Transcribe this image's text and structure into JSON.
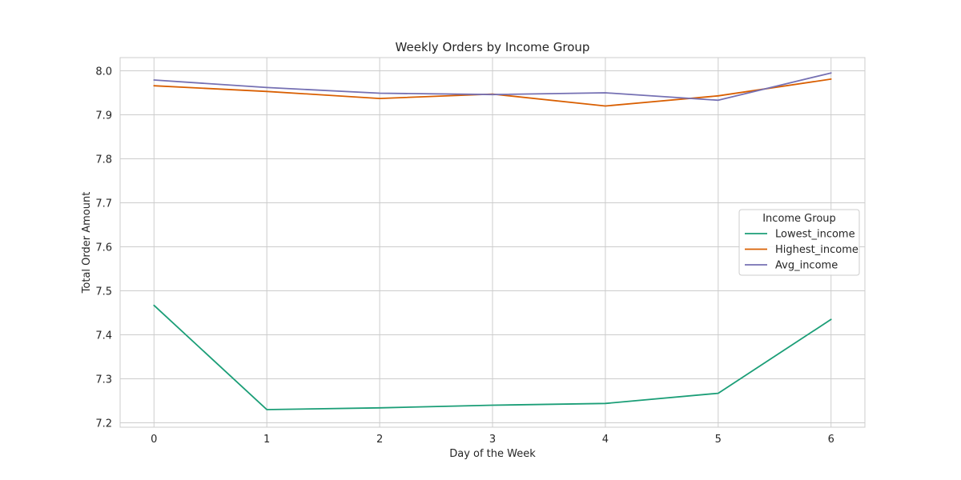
{
  "chart_data": {
    "type": "line",
    "title": "Weekly Orders by Income Group",
    "xlabel": "Day of the Week",
    "ylabel": "Total Order Amount",
    "x": [
      0,
      1,
      2,
      3,
      4,
      5,
      6
    ],
    "xlim": [
      -0.3,
      6.3
    ],
    "ylim": [
      7.19,
      8.03
    ],
    "yticks": [
      7.2,
      7.3,
      7.4,
      7.5,
      7.6,
      7.7,
      7.8,
      7.9,
      8.0
    ],
    "ytick_labels": [
      "7.2",
      "7.3",
      "7.4",
      "7.5",
      "7.6",
      "7.7",
      "7.8",
      "7.9",
      "8.0"
    ],
    "xtick_labels": [
      "0",
      "1",
      "2",
      "3",
      "4",
      "5",
      "6"
    ],
    "grid": true,
    "legend": {
      "title": "Income Group",
      "placement": "center-right"
    },
    "series": [
      {
        "name": "Lowest_income",
        "color": "#1b9e77",
        "values": [
          7.467,
          7.23,
          7.234,
          7.24,
          7.244,
          7.267,
          7.435
        ]
      },
      {
        "name": "Highest_income",
        "color": "#d95f02",
        "values": [
          7.966,
          7.953,
          7.937,
          7.947,
          7.92,
          7.943,
          7.981
        ]
      },
      {
        "name": "Avg_income",
        "color": "#7570b3",
        "values": [
          7.979,
          7.962,
          7.949,
          7.946,
          7.95,
          7.933,
          7.995
        ]
      }
    ]
  }
}
